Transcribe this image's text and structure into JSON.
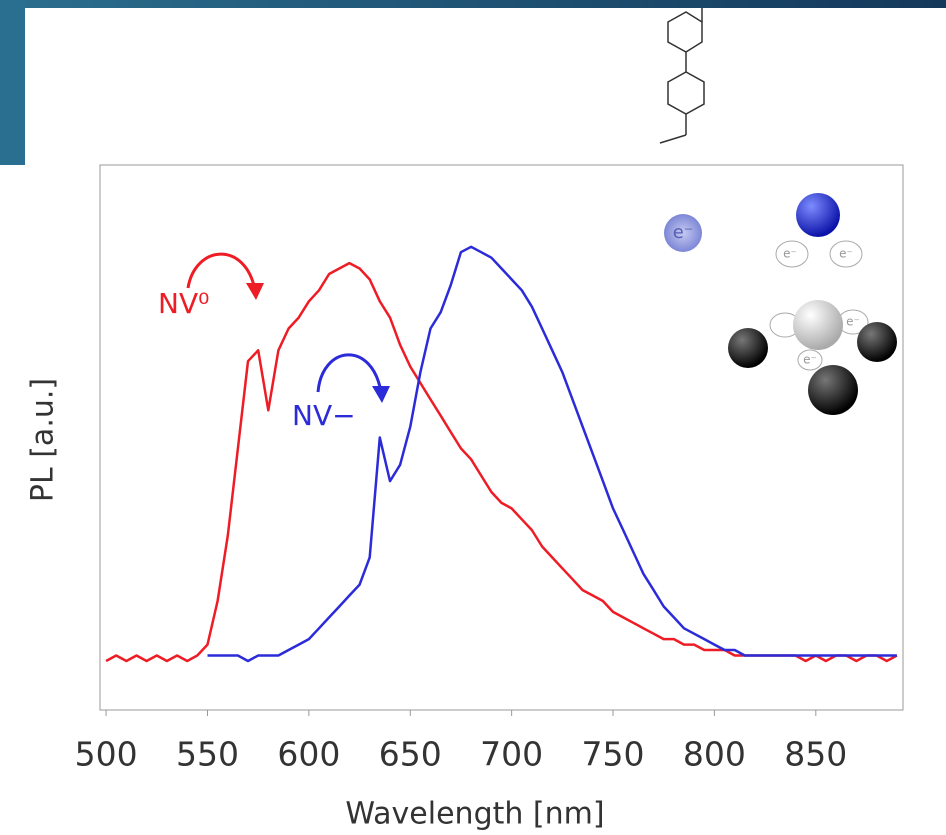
{
  "chart_data": {
    "type": "line",
    "xlabel": "Wavelength [nm]",
    "ylabel": "PL  [a.u.]",
    "xlim": [
      497,
      893
    ],
    "ylim": [
      0,
      1
    ],
    "xticks": [
      500,
      550,
      600,
      650,
      700,
      750,
      800,
      850
    ],
    "x": [
      500,
      505,
      510,
      515,
      520,
      525,
      530,
      535,
      540,
      545,
      550,
      555,
      560,
      565,
      570,
      575,
      580,
      585,
      590,
      595,
      600,
      605,
      610,
      615,
      620,
      625,
      630,
      635,
      640,
      645,
      650,
      655,
      660,
      665,
      670,
      675,
      680,
      685,
      690,
      695,
      700,
      705,
      710,
      715,
      720,
      725,
      730,
      735,
      740,
      745,
      750,
      755,
      760,
      765,
      770,
      775,
      780,
      785,
      790,
      795,
      800,
      805,
      810,
      815,
      820,
      825,
      830,
      835,
      840,
      845,
      850,
      855,
      860,
      865,
      870,
      875,
      880,
      885,
      890
    ],
    "series": [
      {
        "name": "NV⁰",
        "color": "#ee1c25",
        "values": [
          0.09,
          0.1,
          0.09,
          0.1,
          0.09,
          0.1,
          0.09,
          0.1,
          0.09,
          0.1,
          0.12,
          0.2,
          0.32,
          0.48,
          0.64,
          0.66,
          0.55,
          0.66,
          0.7,
          0.72,
          0.75,
          0.77,
          0.8,
          0.81,
          0.82,
          0.81,
          0.79,
          0.75,
          0.72,
          0.67,
          0.63,
          0.6,
          0.57,
          0.54,
          0.51,
          0.48,
          0.46,
          0.43,
          0.4,
          0.38,
          0.37,
          0.35,
          0.33,
          0.3,
          0.28,
          0.26,
          0.24,
          0.22,
          0.21,
          0.2,
          0.18,
          0.17,
          0.16,
          0.15,
          0.14,
          0.13,
          0.13,
          0.12,
          0.12,
          0.11,
          0.11,
          0.11,
          0.1,
          0.1,
          0.1,
          0.1,
          0.1,
          0.1,
          0.1,
          0.09,
          0.1,
          0.09,
          0.1,
          0.1,
          0.09,
          0.1,
          0.1,
          0.09,
          0.1
        ]
      },
      {
        "name": "NV−",
        "color": "#2b2bd9",
        "values": [
          null,
          null,
          null,
          null,
          null,
          null,
          null,
          null,
          null,
          null,
          0.1,
          0.1,
          0.1,
          0.1,
          0.09,
          0.1,
          0.1,
          0.1,
          0.11,
          0.12,
          0.13,
          0.15,
          0.17,
          0.19,
          0.21,
          0.23,
          0.28,
          0.5,
          0.42,
          0.45,
          0.52,
          0.62,
          0.7,
          0.73,
          0.78,
          0.84,
          0.85,
          0.84,
          0.83,
          0.81,
          0.79,
          0.77,
          0.74,
          0.7,
          0.66,
          0.62,
          0.57,
          0.52,
          0.47,
          0.42,
          0.37,
          0.33,
          0.29,
          0.25,
          0.22,
          0.19,
          0.17,
          0.15,
          0.14,
          0.13,
          0.12,
          0.11,
          0.11,
          0.1,
          0.1,
          0.1,
          0.1,
          0.1,
          0.1,
          0.1,
          0.1,
          0.1,
          0.1,
          0.1,
          0.1,
          0.1,
          0.1,
          0.1,
          0.1
        ]
      }
    ],
    "electron_label": "e⁻"
  }
}
